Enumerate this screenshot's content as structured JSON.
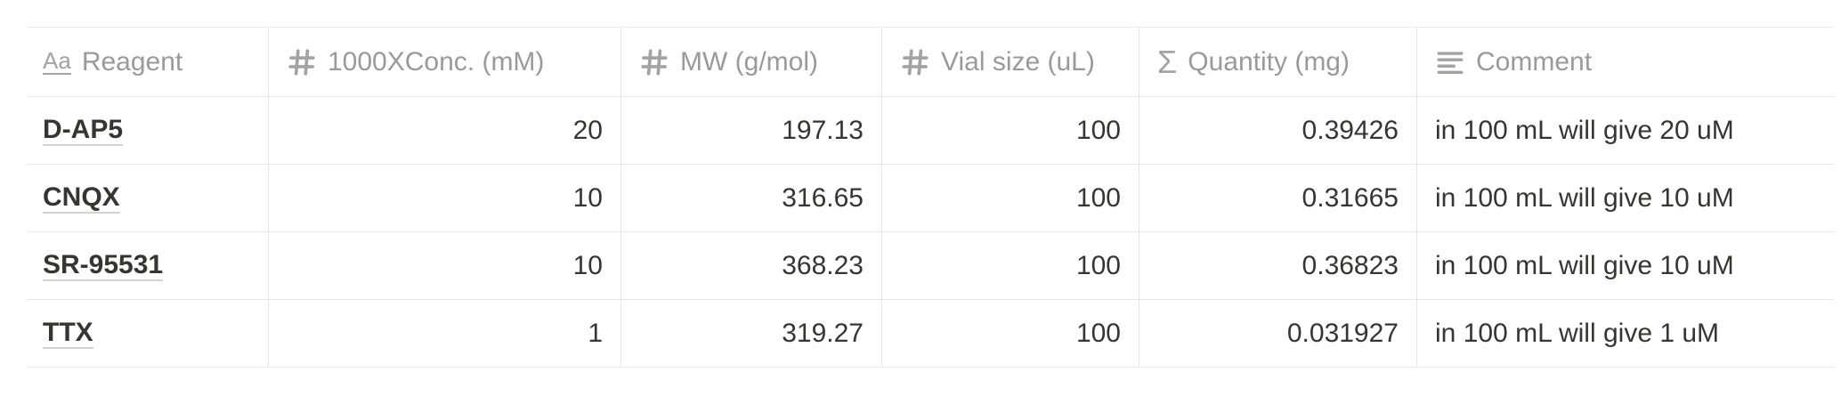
{
  "headers": {
    "reagent": "Reagent",
    "conc": "1000XConc. (mM)",
    "mw": "MW (g/mol)",
    "vial": "Vial size (uL)",
    "quantity": "Quantity (mg)",
    "comment": "Comment"
  },
  "icons": {
    "title": "Aa",
    "number": "hash-icon",
    "formula": "Σ",
    "text": "text-lines-icon"
  },
  "rows": [
    {
      "reagent": "D-AP5",
      "conc": "20",
      "mw": "197.13",
      "vial": "100",
      "quantity": "0.39426",
      "comment": "in 100 mL will give 20 uM"
    },
    {
      "reagent": "CNQX",
      "conc": "10",
      "mw": "316.65",
      "vial": "100",
      "quantity": "0.31665",
      "comment": "in 100 mL will give 10 uM"
    },
    {
      "reagent": "SR-95531",
      "conc": "10",
      "mw": "368.23",
      "vial": "100",
      "quantity": "0.36823",
      "comment": "in 100 mL will give 10 uM"
    },
    {
      "reagent": "TTX",
      "conc": "1",
      "mw": "319.27",
      "vial": "100",
      "quantity": "0.031927",
      "comment": "in 100 mL will give 1 uM"
    }
  ]
}
